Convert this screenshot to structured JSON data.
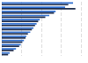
{
  "chart_data": {
    "type": "bar",
    "orientation": "horizontal",
    "categories": [
      null,
      null,
      null,
      null,
      null,
      null,
      null,
      null,
      null,
      null,
      null,
      null,
      null
    ],
    "series": [
      {
        "color": "#2f6fd0",
        "values": [
          90,
          80,
          68,
          60,
          48,
          44,
          40,
          36,
          31,
          28,
          24,
          18,
          10
        ]
      },
      {
        "color": "#1c2b4a",
        "values": [
          84,
          93,
          66,
          55,
          46,
          42,
          38,
          33,
          30,
          26,
          22,
          15,
          8
        ]
      }
    ],
    "xlim": [
      0,
      100
    ],
    "xticks": [
      0,
      25,
      50,
      75,
      100
    ],
    "grid": true,
    "tick_labels": false
  }
}
